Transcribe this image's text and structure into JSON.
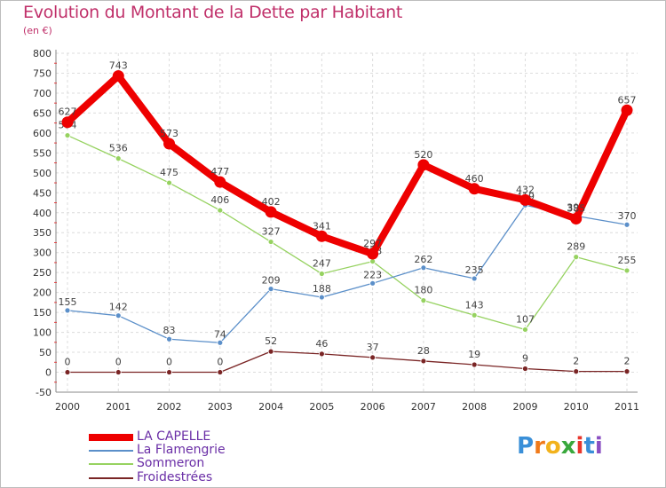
{
  "header": {
    "title": "Evolution du Montant de la Dette par Habitant",
    "subtitle": "(en €)"
  },
  "brand": {
    "letters": [
      "P",
      "r",
      "o",
      "x",
      "i",
      "t",
      "i"
    ],
    "colors": [
      "#3a8fd8",
      "#f07a1a",
      "#f2b21c",
      "#39a83c",
      "#e8362c",
      "#3a8fd8",
      "#8a4fc2"
    ]
  },
  "chart_data": {
    "type": "line",
    "title": "Evolution du Montant de la Dette par Habitant",
    "subtitle": "(en €)",
    "xlabel": "",
    "ylabel": "",
    "x": [
      "2000",
      "2001",
      "2002",
      "2003",
      "2004",
      "2005",
      "2006",
      "2007",
      "2008",
      "2009",
      "2010",
      "2011"
    ],
    "ylim": [
      -50,
      800
    ],
    "yticks": [
      -50,
      0,
      50,
      100,
      150,
      200,
      250,
      300,
      350,
      400,
      450,
      500,
      550,
      600,
      650,
      700,
      750,
      800
    ],
    "grid": true,
    "legend": "bottom-left",
    "series": [
      {
        "name": "LA CAPELLE",
        "color": "#ee0000",
        "values": [
          627,
          743,
          573,
          477,
          402,
          341,
          297,
          520,
          460,
          432,
          385,
          657
        ]
      },
      {
        "name": "La Flamengrie",
        "color": "#5b8fc9",
        "values": [
          155,
          142,
          83,
          74,
          209,
          188,
          223,
          262,
          235,
          419,
          392,
          370
        ]
      },
      {
        "name": "Sommeron",
        "color": "#96d260",
        "values": [
          594,
          536,
          475,
          406,
          327,
          247,
          278,
          180,
          143,
          107,
          289,
          255
        ]
      },
      {
        "name": "Froidestrées",
        "color": "#7a2525",
        "values": [
          0,
          0,
          0,
          0,
          52,
          46,
          37,
          28,
          19,
          9,
          2,
          2
        ]
      }
    ]
  }
}
